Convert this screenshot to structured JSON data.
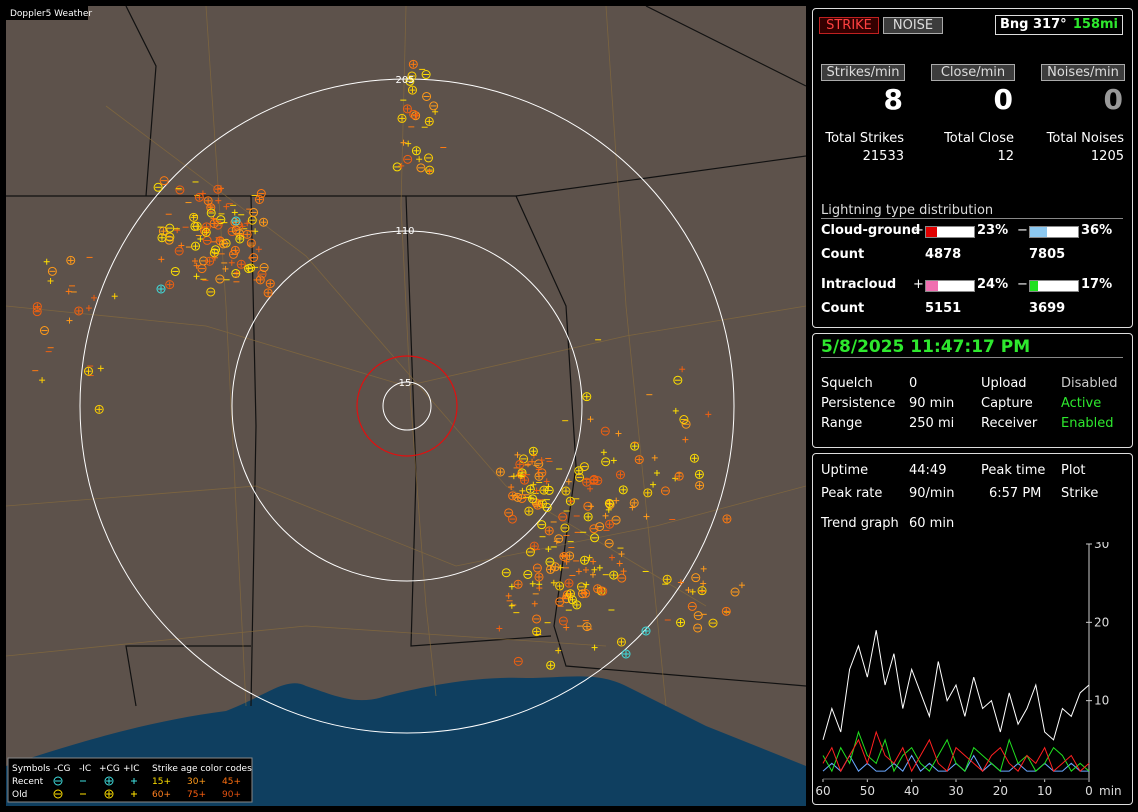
{
  "map": {
    "brand": "Doppler5 Weather",
    "ring_labels": [
      "205",
      "110",
      "15"
    ],
    "legend": {
      "symbols": "Symbols",
      "neg_cg": "-CG",
      "neg_ic": "-IC",
      "pos_cg": "+CG",
      "pos_ic": "+IC",
      "age_title": "Strike age color codes",
      "recent": "Recent",
      "old": "Old",
      "ages": [
        "15+",
        "30+",
        "45+",
        "60+",
        "75+",
        "90+"
      ]
    }
  },
  "status": {
    "strike": "STRIKE",
    "noise": "NOISE",
    "bearing": "Bng 317°",
    "distance": "158mi",
    "rates": [
      {
        "label": "Strikes/min",
        "value": "8"
      },
      {
        "label": "Close/min",
        "value": "0"
      },
      {
        "label": "Noises/min",
        "value": "0"
      }
    ],
    "totals": [
      {
        "label": "Total Strikes",
        "value": "21533"
      },
      {
        "label": "Total Close",
        "value": "12"
      },
      {
        "label": "Total Noises",
        "value": "1205"
      }
    ],
    "distribution": {
      "title": "Lightning type distribution",
      "count_label": "Count",
      "rows": [
        {
          "label": "Cloud-ground",
          "plus": "+",
          "plus_pct": "23%",
          "minus": "−",
          "minus_pct": "36%",
          "plus_count": "4878",
          "minus_count": "7805"
        },
        {
          "label": "Intracloud",
          "plus": "+",
          "plus_pct": "24%",
          "minus": "−",
          "minus_pct": "17%",
          "plus_count": "5151",
          "minus_count": "3699"
        }
      ]
    }
  },
  "settings": {
    "datetime": "5/8/2025 11:47:17 PM",
    "rows": [
      [
        "Squelch",
        "0",
        "Upload",
        "Disabled"
      ],
      [
        "Persistence",
        "90 min",
        "Capture",
        "Active"
      ],
      [
        "Range",
        "250 mi",
        "Receiver",
        "Enabled"
      ]
    ]
  },
  "stats": {
    "rows": [
      [
        "Uptime",
        "44:49",
        "Peak time",
        "6:57 PM",
        "Plot"
      ],
      [
        "Peak rate",
        "90/min",
        "",
        "",
        "Strike"
      ]
    ],
    "trend_label": "Trend graph",
    "trend_value": "60 min"
  },
  "chart_data": {
    "type": "line",
    "x": [
      60,
      58,
      56,
      54,
      52,
      50,
      48,
      46,
      44,
      42,
      40,
      38,
      36,
      34,
      32,
      30,
      28,
      26,
      24,
      22,
      20,
      18,
      16,
      14,
      12,
      10,
      8,
      6,
      4,
      2,
      0
    ],
    "xlim": [
      60,
      0
    ],
    "xticks": [
      60,
      50,
      40,
      30,
      20,
      10,
      0
    ],
    "xlabel": "min",
    "ylim": [
      0,
      30
    ],
    "yticks": [
      10,
      20,
      30
    ],
    "series": [
      {
        "color": "#ffffff",
        "values": [
          5,
          9,
          6,
          14,
          17,
          13,
          19,
          12,
          16,
          9,
          14,
          11,
          8,
          15,
          10,
          12,
          8,
          13,
          9,
          10,
          6,
          11,
          7,
          9,
          12,
          6,
          5,
          9,
          8,
          11,
          12
        ]
      },
      {
        "color": "#ff2020",
        "values": [
          2,
          4,
          1,
          3,
          5,
          2,
          6,
          3,
          2,
          4,
          1,
          3,
          5,
          2,
          1,
          4,
          3,
          2,
          1,
          3,
          4,
          2,
          1,
          3,
          2,
          4,
          1,
          2,
          3,
          1,
          2
        ]
      },
      {
        "color": "#20e020",
        "values": [
          3,
          1,
          4,
          2,
          6,
          3,
          2,
          5,
          1,
          3,
          4,
          2,
          1,
          3,
          5,
          2,
          1,
          4,
          3,
          2,
          1,
          5,
          2,
          3,
          1,
          2,
          4,
          3,
          1,
          2,
          1
        ]
      },
      {
        "color": "#6aa8ff",
        "values": [
          1,
          2,
          1,
          3,
          1,
          2,
          1,
          1,
          2,
          1,
          3,
          1,
          2,
          1,
          1,
          2,
          1,
          3,
          1,
          2,
          1,
          1,
          2,
          1,
          1,
          2,
          1,
          1,
          2,
          1,
          1
        ]
      }
    ]
  }
}
